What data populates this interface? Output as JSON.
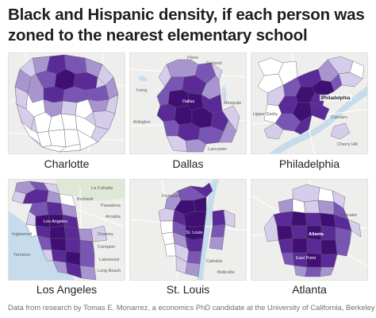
{
  "title": {
    "line1": "Black and Hispanic density, if each person was",
    "line2": "zoned to the nearest elementary school"
  },
  "cities": [
    {
      "name": "Charlotte"
    },
    {
      "name": "Dallas"
    },
    {
      "name": "Philadelphia"
    },
    {
      "name": "Los Angeles"
    },
    {
      "name": "St. Louis"
    },
    {
      "name": "Atlanta"
    }
  ],
  "map_labels": {
    "dallas": [
      "Plano",
      "Garland",
      "Irving",
      "Mesquite",
      "Dallas",
      "Arlington",
      "Lancaster"
    ],
    "philadelphia": [
      "Philadelphia",
      "Upper Darby",
      "Camden",
      "Cherry Hill"
    ],
    "los_angeles": [
      "La Cañada",
      "Burbank",
      "Pasadena",
      "Los Angeles",
      "Arcadia",
      "Inglewood",
      "Downey",
      "Compton",
      "Torrance",
      "Lakewood",
      "Long Beach"
    ],
    "st_louis": [
      "Florissant",
      "St. Louis",
      "Cahokia",
      "Belleville"
    ],
    "atlanta": [
      "Atlanta",
      "East Point",
      "Decatur"
    ]
  },
  "colors": {
    "darkest": "#3f0f73",
    "dark": "#5a2a96",
    "medium": "#7a56b4",
    "light": "#a894cf",
    "lightest": "#d6cdea",
    "white_tract": "#ffffff",
    "tract_border": "#5a5a6a",
    "map_background": "#eeeeec",
    "water": "#c6dcec"
  },
  "footer": {
    "source": "Data from research by Tomas E. Monarrez, a economics PhD candidate at the University of California, Berkeley"
  }
}
